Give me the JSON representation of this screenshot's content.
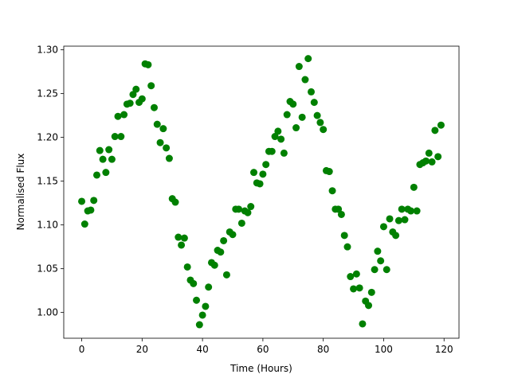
{
  "chart_data": {
    "type": "scatter",
    "x_label": "Time (Hours)",
    "y_label": "Normalised Flux",
    "color": "#008000",
    "x": [
      0,
      1,
      2,
      3,
      4,
      5,
      6,
      7,
      8,
      9,
      10,
      11,
      12,
      13,
      14,
      15,
      16,
      17,
      18,
      19,
      20,
      21,
      22,
      23,
      24,
      25,
      26,
      27,
      28,
      29,
      30,
      31,
      32,
      33,
      34,
      35,
      36,
      37,
      38,
      39,
      40,
      41,
      42,
      43,
      44,
      45,
      46,
      47,
      48,
      49,
      50,
      51,
      52,
      53,
      54,
      55,
      56,
      57,
      58,
      59,
      60,
      61,
      62,
      63,
      64,
      65,
      66,
      67,
      68,
      69,
      70,
      71,
      72,
      73,
      74,
      75,
      76,
      77,
      78,
      79,
      80,
      81,
      82,
      83,
      84,
      85,
      86,
      87,
      88,
      89,
      90,
      91,
      92,
      93,
      94,
      95,
      96,
      97,
      98,
      99,
      100,
      101,
      102,
      103,
      104,
      105,
      106,
      107,
      108,
      109,
      110,
      111,
      112,
      113,
      114,
      115,
      116,
      117,
      118,
      119
    ],
    "values": [
      1.127,
      1.101,
      1.116,
      1.117,
      1.128,
      1.157,
      1.185,
      1.175,
      1.16,
      1.186,
      1.175,
      1.201,
      1.224,
      1.201,
      1.226,
      1.238,
      1.239,
      1.249,
      1.255,
      1.24,
      1.244,
      1.284,
      1.283,
      1.259,
      1.234,
      1.215,
      1.194,
      1.21,
      1.188,
      1.176,
      1.13,
      1.126,
      1.086,
      1.077,
      1.085,
      1.052,
      1.037,
      1.033,
      1.014,
      0.986,
      0.997,
      1.007,
      1.029,
      1.057,
      1.054,
      1.071,
      1.069,
      1.082,
      1.043,
      1.092,
      1.089,
      1.118,
      1.118,
      1.102,
      1.116,
      1.114,
      1.121,
      1.16,
      1.148,
      1.147,
      1.158,
      1.169,
      1.184,
      1.184,
      1.201,
      1.207,
      1.198,
      1.182,
      1.226,
      1.241,
      1.238,
      1.211,
      1.281,
      1.223,
      1.266,
      1.29,
      1.252,
      1.24,
      1.225,
      1.217,
      1.209,
      1.162,
      1.161,
      1.139,
      1.118,
      1.118,
      1.112,
      1.088,
      1.075,
      1.041,
      1.027,
      1.044,
      1.028,
      0.987,
      1.013,
      1.008,
      1.023,
      1.049,
      1.07,
      1.059,
      1.098,
      1.049,
      1.107,
      1.092,
      1.088,
      1.105,
      1.118,
      1.106,
      1.118,
      1.116,
      1.143,
      1.116,
      1.169,
      1.171,
      1.173,
      1.182,
      1.172,
      1.208,
      1.178,
      1.214
    ],
    "xlim": [
      -5.95,
      124.95
    ],
    "xticks": [
      0,
      20,
      40,
      60,
      80,
      100,
      120
    ],
    "ylim": [
      0.9706,
      1.3042
    ],
    "yticks": [
      {
        "value": 1.0,
        "label": "1.00"
      },
      {
        "value": 1.05,
        "label": "1.05"
      },
      {
        "value": 1.1,
        "label": "1.10"
      },
      {
        "value": 1.15,
        "label": "1.15"
      },
      {
        "value": 1.2,
        "label": "1.20"
      },
      {
        "value": 1.25,
        "label": "1.25"
      },
      {
        "value": 1.3,
        "label": "1.30"
      }
    ]
  }
}
